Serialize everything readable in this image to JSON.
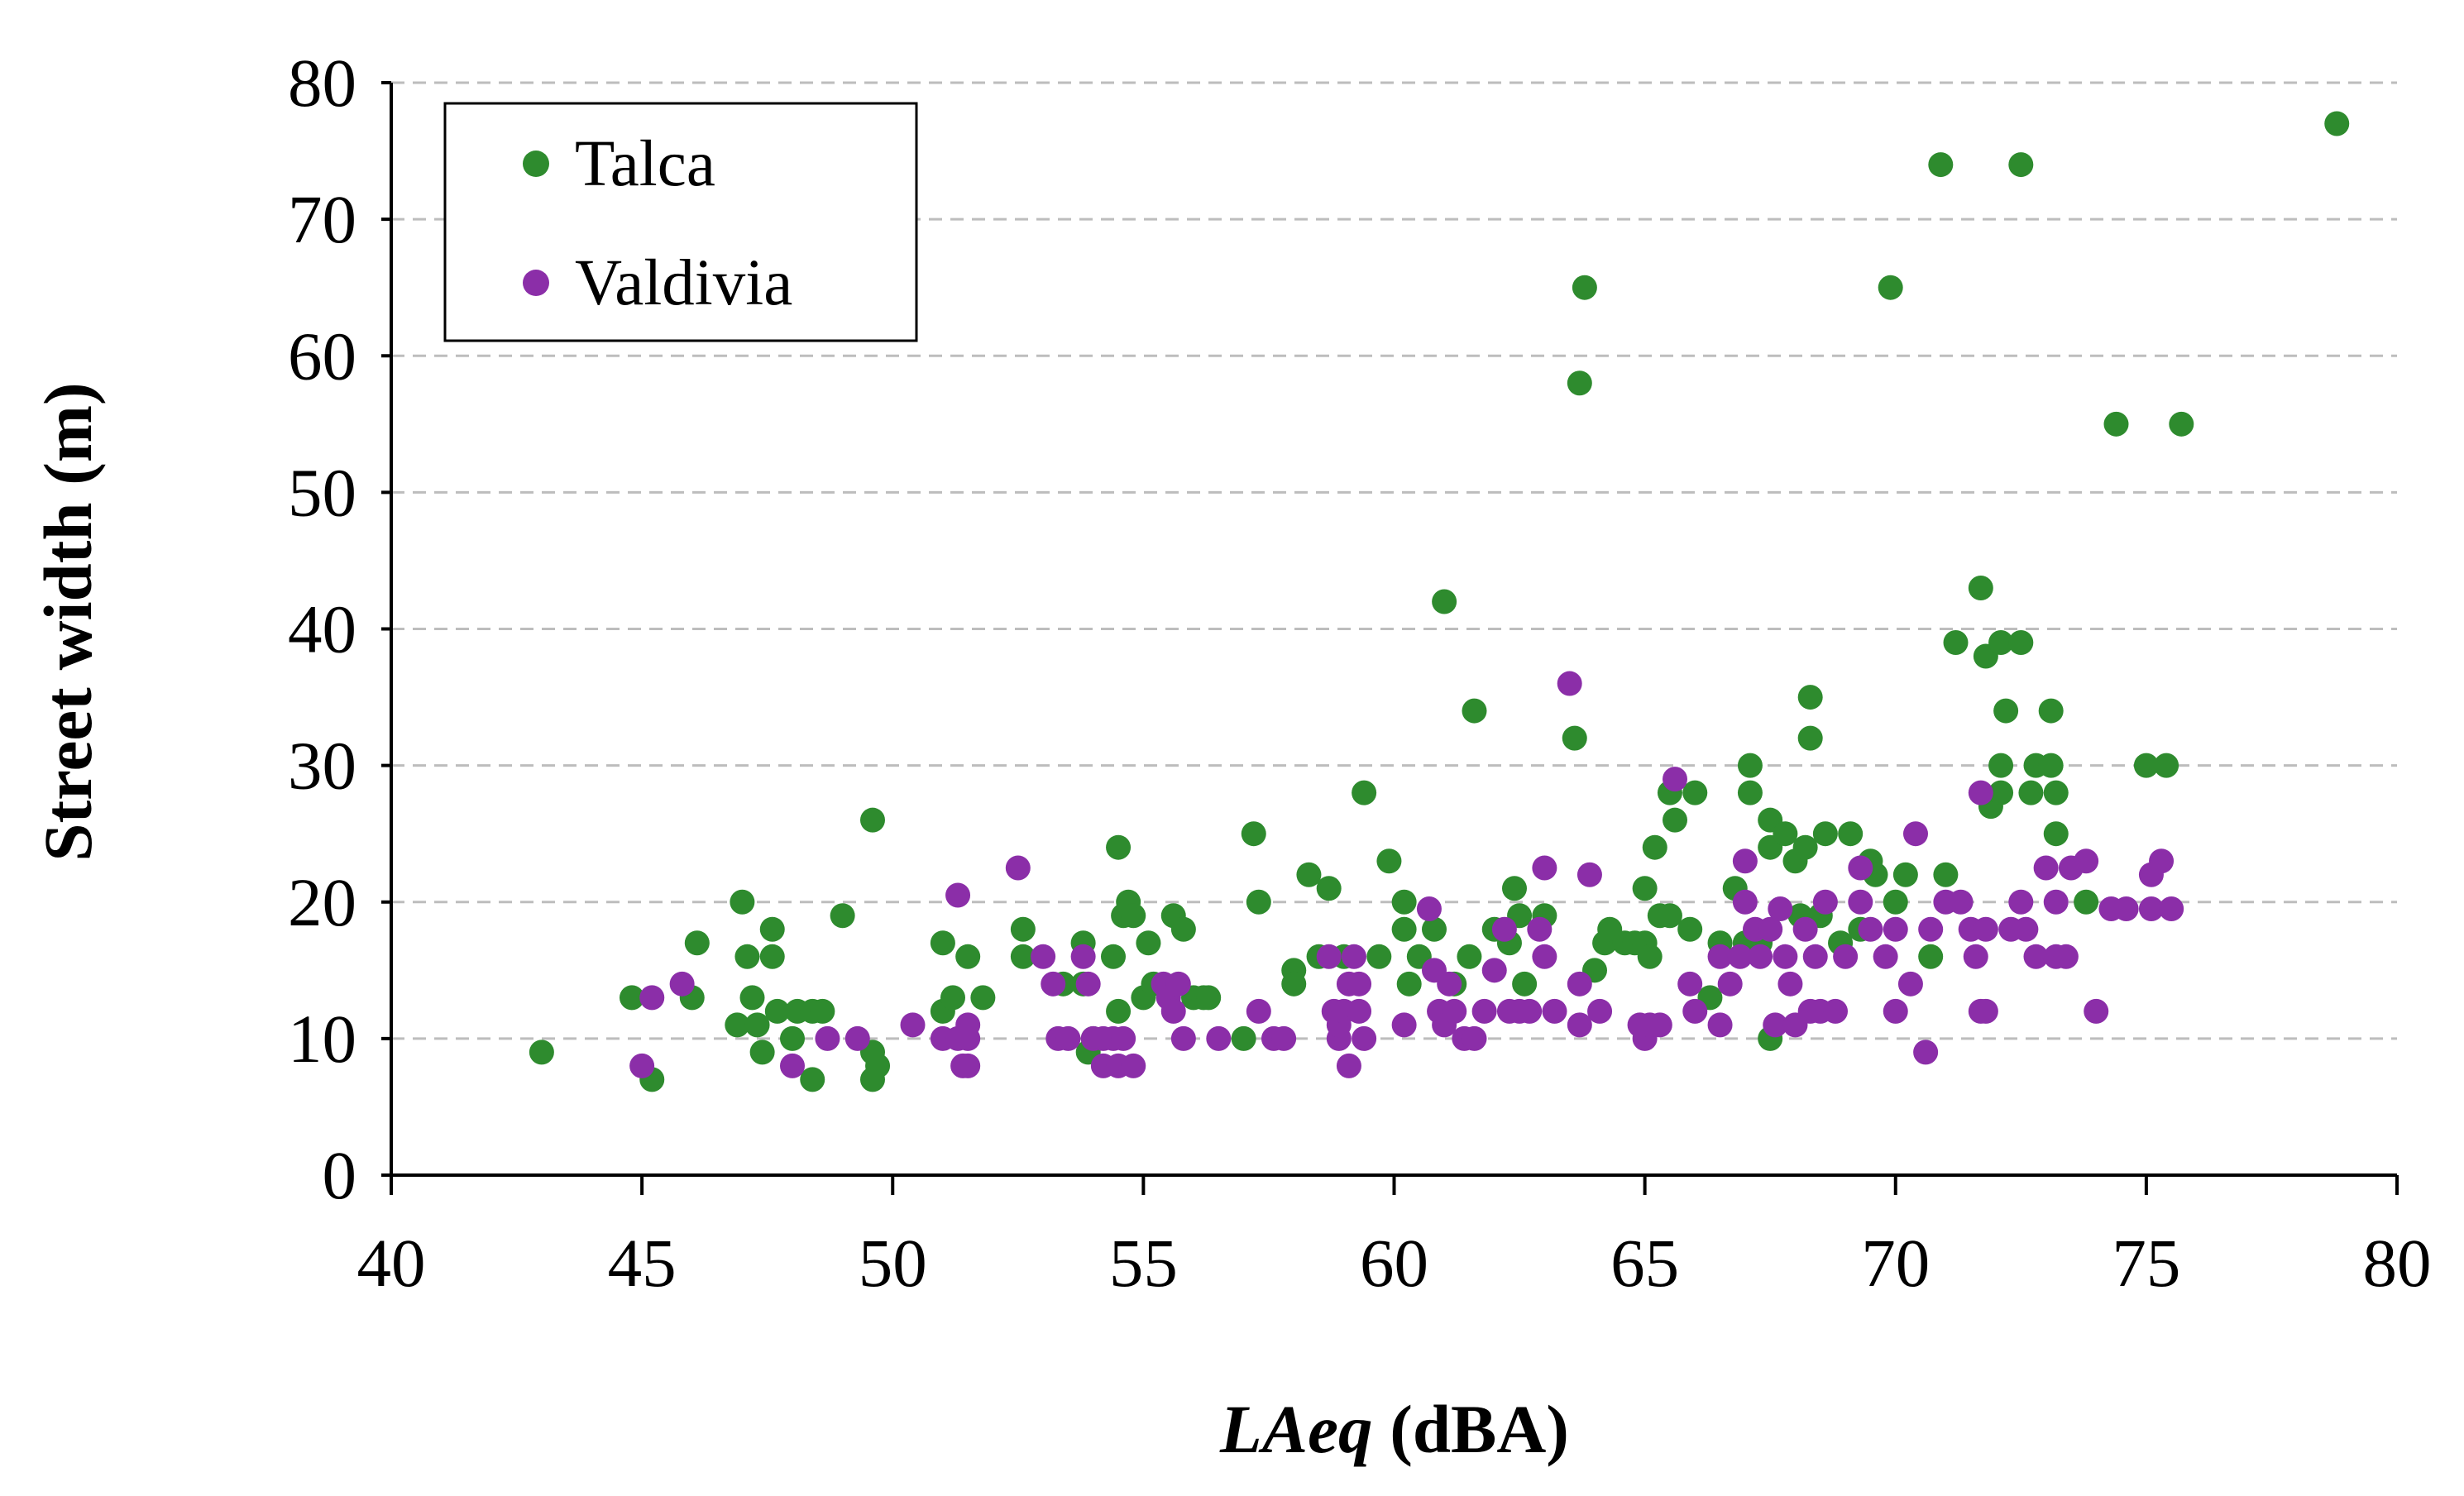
{
  "chart_data": {
    "type": "scatter",
    "title": "",
    "xlabel": {
      "italic": "LAeq",
      "rest": " (dBA)"
    },
    "ylabel": "Street width (m)",
    "xlim": [
      40,
      80
    ],
    "ylim": [
      0,
      80
    ],
    "xticks": [
      40,
      45,
      50,
      55,
      60,
      65,
      70,
      75,
      80
    ],
    "yticks": [
      0,
      10,
      20,
      30,
      40,
      50,
      60,
      70,
      80
    ],
    "grid": "horizontal dashed",
    "legend_position": "top-left",
    "series": [
      {
        "name": "Talca",
        "color": "#2e8b2e",
        "points": [
          [
            43.0,
            9
          ],
          [
            44.8,
            13
          ],
          [
            45.2,
            7
          ],
          [
            46.1,
            17
          ],
          [
            46.0,
            13
          ],
          [
            46.9,
            11
          ],
          [
            47.0,
            20
          ],
          [
            47.1,
            16
          ],
          [
            47.2,
            13
          ],
          [
            47.3,
            11
          ],
          [
            47.4,
            9
          ],
          [
            47.6,
            18
          ],
          [
            47.6,
            16
          ],
          [
            47.7,
            12
          ],
          [
            48.0,
            10
          ],
          [
            48.1,
            12
          ],
          [
            48.4,
            12
          ],
          [
            48.4,
            7
          ],
          [
            48.6,
            12
          ],
          [
            49.0,
            19
          ],
          [
            49.6,
            26
          ],
          [
            49.6,
            9
          ],
          [
            49.6,
            7
          ],
          [
            49.7,
            8
          ],
          [
            51.0,
            17
          ],
          [
            51.0,
            12
          ],
          [
            51.2,
            13
          ],
          [
            51.5,
            16
          ],
          [
            51.8,
            13
          ],
          [
            52.6,
            18
          ],
          [
            52.6,
            16
          ],
          [
            53.4,
            14
          ],
          [
            53.8,
            17
          ],
          [
            53.8,
            14
          ],
          [
            53.9,
            9
          ],
          [
            54.0,
            10
          ],
          [
            54.4,
            16
          ],
          [
            54.5,
            24
          ],
          [
            54.5,
            12
          ],
          [
            54.6,
            19
          ],
          [
            54.7,
            20
          ],
          [
            54.8,
            19
          ],
          [
            55.0,
            13
          ],
          [
            55.1,
            17
          ],
          [
            55.2,
            14
          ],
          [
            55.6,
            19
          ],
          [
            55.8,
            18
          ],
          [
            56.0,
            13
          ],
          [
            56.2,
            13
          ],
          [
            56.3,
            13
          ],
          [
            57.0,
            10
          ],
          [
            57.2,
            25
          ],
          [
            57.3,
            20
          ],
          [
            58.0,
            15
          ],
          [
            58.0,
            14
          ],
          [
            58.3,
            22
          ],
          [
            58.5,
            16
          ],
          [
            58.7,
            21
          ],
          [
            59.0,
            16
          ],
          [
            59.4,
            28
          ],
          [
            59.7,
            16
          ],
          [
            59.9,
            23
          ],
          [
            60.2,
            20
          ],
          [
            60.2,
            18
          ],
          [
            60.3,
            14
          ],
          [
            60.5,
            16
          ],
          [
            60.8,
            18
          ],
          [
            61.0,
            42
          ],
          [
            61.2,
            14
          ],
          [
            61.5,
            16
          ],
          [
            61.6,
            34
          ],
          [
            62.0,
            18
          ],
          [
            62.3,
            17
          ],
          [
            62.4,
            21
          ],
          [
            62.5,
            19
          ],
          [
            62.6,
            14
          ],
          [
            63.0,
            19
          ],
          [
            63.6,
            32
          ],
          [
            63.7,
            58
          ],
          [
            63.8,
            65
          ],
          [
            64.0,
            15
          ],
          [
            64.2,
            17
          ],
          [
            64.3,
            18
          ],
          [
            64.6,
            17
          ],
          [
            64.8,
            17
          ],
          [
            65.0,
            17
          ],
          [
            65.0,
            21
          ],
          [
            65.1,
            16
          ],
          [
            65.2,
            24
          ],
          [
            65.3,
            19
          ],
          [
            65.5,
            19
          ],
          [
            65.6,
            26
          ],
          [
            65.5,
            28
          ],
          [
            65.9,
            18
          ],
          [
            66.0,
            28
          ],
          [
            66.3,
            13
          ],
          [
            66.5,
            17
          ],
          [
            66.8,
            21
          ],
          [
            67.0,
            17
          ],
          [
            67.1,
            28
          ],
          [
            67.1,
            30
          ],
          [
            67.3,
            17
          ],
          [
            67.5,
            26
          ],
          [
            67.5,
            24
          ],
          [
            67.5,
            10
          ],
          [
            67.8,
            25
          ],
          [
            68.0,
            23
          ],
          [
            68.2,
            24
          ],
          [
            68.1,
            19
          ],
          [
            68.3,
            35
          ],
          [
            68.3,
            32
          ],
          [
            68.5,
            19
          ],
          [
            68.6,
            25
          ],
          [
            68.9,
            17
          ],
          [
            69.1,
            25
          ],
          [
            69.3,
            18
          ],
          [
            69.5,
            23
          ],
          [
            69.6,
            22
          ],
          [
            69.9,
            65
          ],
          [
            70.0,
            20
          ],
          [
            70.2,
            22
          ],
          [
            70.7,
            16
          ],
          [
            70.9,
            74
          ],
          [
            71.0,
            22
          ],
          [
            71.2,
            39
          ],
          [
            71.7,
            43
          ],
          [
            71.8,
            38
          ],
          [
            71.9,
            27
          ],
          [
            72.1,
            39
          ],
          [
            72.1,
            30
          ],
          [
            72.1,
            28
          ],
          [
            72.2,
            34
          ],
          [
            72.5,
            39
          ],
          [
            72.5,
            74
          ],
          [
            72.7,
            28
          ],
          [
            72.8,
            30
          ],
          [
            73.1,
            30
          ],
          [
            73.1,
            34
          ],
          [
            73.2,
            28
          ],
          [
            73.2,
            25
          ],
          [
            73.8,
            20
          ],
          [
            74.4,
            55
          ],
          [
            75.0,
            30
          ],
          [
            75.4,
            30
          ],
          [
            75.7,
            55
          ],
          [
            78.8,
            77
          ]
        ]
      },
      {
        "name": "Valdivia",
        "color": "#8b2ea8",
        "points": [
          [
            45.0,
            8
          ],
          [
            45.2,
            13
          ],
          [
            45.8,
            14
          ],
          [
            48.0,
            8
          ],
          [
            48.7,
            10
          ],
          [
            49.3,
            10
          ],
          [
            50.4,
            11
          ],
          [
            51.0,
            10
          ],
          [
            51.3,
            10
          ],
          [
            51.3,
            20.5
          ],
          [
            51.4,
            8
          ],
          [
            51.5,
            8
          ],
          [
            51.5,
            11
          ],
          [
            51.5,
            10
          ],
          [
            52.5,
            22.5
          ],
          [
            53.0,
            16
          ],
          [
            53.2,
            14
          ],
          [
            53.3,
            10
          ],
          [
            53.5,
            10
          ],
          [
            53.8,
            16
          ],
          [
            53.9,
            14
          ],
          [
            54.0,
            10
          ],
          [
            54.2,
            10
          ],
          [
            54.2,
            8
          ],
          [
            54.4,
            10
          ],
          [
            54.6,
            10
          ],
          [
            54.5,
            8
          ],
          [
            54.8,
            8
          ],
          [
            55.4,
            14
          ],
          [
            55.5,
            13
          ],
          [
            55.7,
            14
          ],
          [
            55.8,
            10
          ],
          [
            55.6,
            12
          ],
          [
            56.5,
            10
          ],
          [
            57.3,
            12
          ],
          [
            57.6,
            10
          ],
          [
            57.8,
            10
          ],
          [
            58.7,
            16
          ],
          [
            58.8,
            12
          ],
          [
            58.9,
            10
          ],
          [
            58.9,
            11
          ],
          [
            59.0,
            12
          ],
          [
            59.1,
            14
          ],
          [
            59.1,
            8
          ],
          [
            59.2,
            16
          ],
          [
            59.3,
            12
          ],
          [
            59.3,
            14
          ],
          [
            59.4,
            10
          ],
          [
            60.2,
            11
          ],
          [
            60.7,
            19.5
          ],
          [
            60.8,
            15
          ],
          [
            60.9,
            12
          ],
          [
            61.1,
            14
          ],
          [
            61.0,
            11
          ],
          [
            61.2,
            12
          ],
          [
            61.4,
            10
          ],
          [
            61.6,
            10
          ],
          [
            61.8,
            12
          ],
          [
            62.0,
            15
          ],
          [
            62.2,
            18
          ],
          [
            62.3,
            12
          ],
          [
            62.5,
            12
          ],
          [
            62.7,
            12
          ],
          [
            62.9,
            18
          ],
          [
            63.0,
            16
          ],
          [
            63.0,
            22.5
          ],
          [
            63.2,
            12
          ],
          [
            63.5,
            36
          ],
          [
            63.7,
            14
          ],
          [
            63.7,
            11
          ],
          [
            63.9,
            22
          ],
          [
            64.1,
            12
          ],
          [
            64.9,
            11
          ],
          [
            65.0,
            10
          ],
          [
            65.1,
            11
          ],
          [
            65.3,
            11
          ],
          [
            65.6,
            29
          ],
          [
            65.9,
            14
          ],
          [
            66.0,
            12
          ],
          [
            66.5,
            11
          ],
          [
            66.5,
            16
          ],
          [
            66.7,
            14
          ],
          [
            66.9,
            16
          ],
          [
            67.0,
            20
          ],
          [
            67.0,
            23
          ],
          [
            67.2,
            18
          ],
          [
            67.3,
            16
          ],
          [
            67.5,
            18
          ],
          [
            67.6,
            11
          ],
          [
            67.7,
            19.5
          ],
          [
            67.8,
            16
          ],
          [
            67.9,
            14
          ],
          [
            68.0,
            11
          ],
          [
            68.2,
            18
          ],
          [
            68.3,
            12
          ],
          [
            68.4,
            16
          ],
          [
            68.5,
            12
          ],
          [
            68.6,
            20
          ],
          [
            68.8,
            12
          ],
          [
            69.0,
            16
          ],
          [
            69.3,
            22.5
          ],
          [
            69.3,
            20
          ],
          [
            69.5,
            18
          ],
          [
            69.8,
            16
          ],
          [
            70.0,
            12
          ],
          [
            70.0,
            18
          ],
          [
            70.3,
            14
          ],
          [
            70.4,
            25
          ],
          [
            70.6,
            9
          ],
          [
            70.7,
            18
          ],
          [
            71.0,
            20
          ],
          [
            71.3,
            20
          ],
          [
            71.5,
            18
          ],
          [
            71.6,
            16
          ],
          [
            71.7,
            28
          ],
          [
            71.7,
            12
          ],
          [
            71.8,
            12
          ],
          [
            71.8,
            18
          ],
          [
            72.3,
            18
          ],
          [
            72.5,
            20
          ],
          [
            72.6,
            18
          ],
          [
            72.8,
            16
          ],
          [
            73.0,
            22.5
          ],
          [
            73.2,
            20
          ],
          [
            73.2,
            16
          ],
          [
            73.4,
            16
          ],
          [
            73.5,
            22.5
          ],
          [
            73.8,
            23
          ],
          [
            74.0,
            12
          ],
          [
            74.3,
            19.5
          ],
          [
            74.6,
            19.5
          ],
          [
            75.1,
            22
          ],
          [
            75.3,
            23
          ],
          [
            75.1,
            19.5
          ],
          [
            75.5,
            19.5
          ]
        ]
      }
    ]
  }
}
